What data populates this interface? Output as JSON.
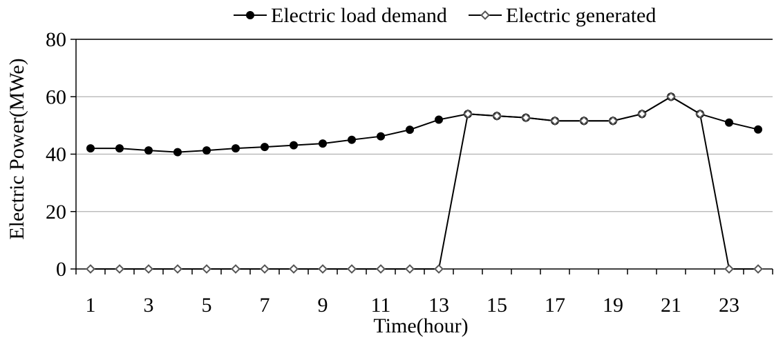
{
  "chart_data": {
    "type": "line",
    "title": "",
    "xlabel": "Time(hour)",
    "ylabel": "Electric Power(MWe)",
    "x": [
      1,
      2,
      3,
      4,
      5,
      6,
      7,
      8,
      9,
      10,
      11,
      12,
      13,
      14,
      15,
      16,
      17,
      18,
      19,
      20,
      21,
      22,
      23,
      24
    ],
    "x_tick_labels": [
      "1",
      "3",
      "5",
      "7",
      "9",
      "11",
      "13",
      "15",
      "17",
      "19",
      "21",
      "23"
    ],
    "y_ticks": [
      0,
      20,
      40,
      60,
      80
    ],
    "ylim": [
      0,
      80
    ],
    "xlim": [
      0.5,
      24.5
    ],
    "grid": "horizontal",
    "legend_position": "top",
    "series": [
      {
        "name": "Electric load demand",
        "marker": "filled-circle",
        "color": "#000000",
        "values": [
          42,
          42,
          41.3,
          40.7,
          41.3,
          42,
          42.5,
          43.1,
          43.7,
          45,
          46.2,
          48.5,
          52,
          54,
          53.3,
          52.7,
          51.6,
          51.6,
          51.6,
          54,
          60,
          54,
          51,
          48.6
        ]
      },
      {
        "name": "Electric generated",
        "marker": "open-diamond",
        "color": "#000000",
        "values": [
          0,
          0,
          0,
          0,
          0,
          0,
          0,
          0,
          0,
          0,
          0,
          0,
          0,
          54,
          53.3,
          52.7,
          51.6,
          51.6,
          51.6,
          54,
          60,
          54,
          0,
          0
        ]
      }
    ]
  }
}
